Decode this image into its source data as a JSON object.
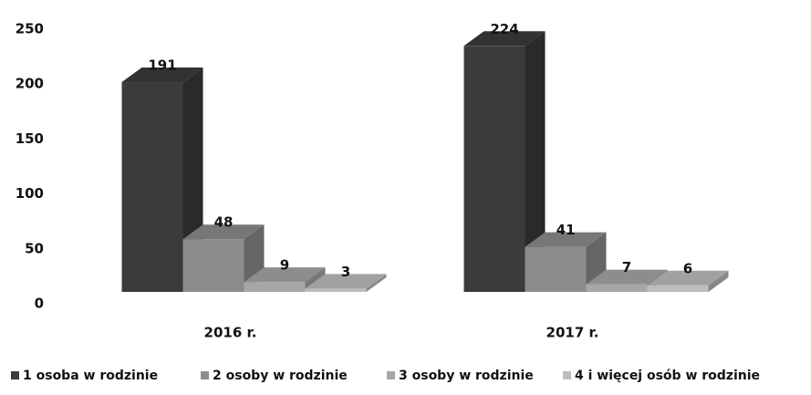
{
  "chart_data": {
    "type": "bar3d",
    "categories": [
      "2016 r.",
      "2017 r."
    ],
    "series": [
      {
        "name": "1 osoba w rodzinie",
        "color": "#3b3b3b",
        "values": [
          191,
          224
        ]
      },
      {
        "name": "2 osoby w rodzinie",
        "color": "#8c8c8c",
        "values": [
          48,
          41
        ]
      },
      {
        "name": "3 osoby w rodzinie",
        "color": "#a6a6a6",
        "values": [
          9,
          7
        ]
      },
      {
        "name": "4 i więcej osób w rodzinie",
        "color": "#bdbdbd",
        "values": [
          3,
          6
        ]
      }
    ],
    "ylim": [
      0,
      250
    ],
    "yticks": [
      0,
      50,
      100,
      150,
      200,
      250
    ],
    "legend": "bottom"
  }
}
